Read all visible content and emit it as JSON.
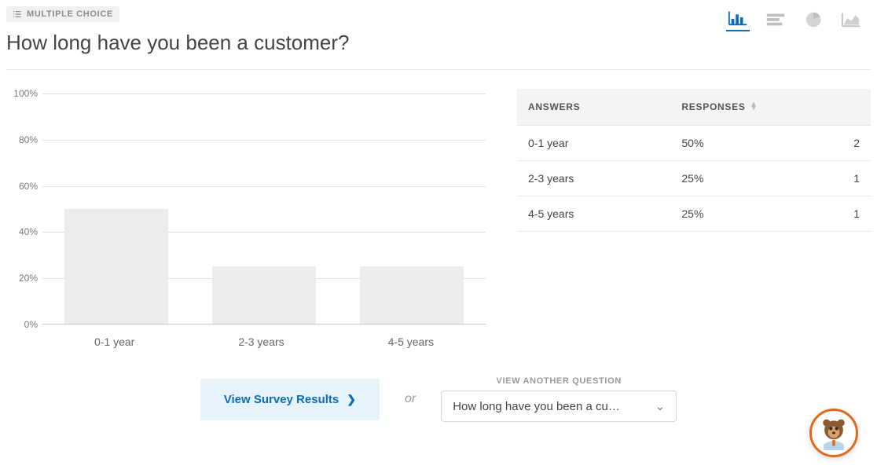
{
  "question": {
    "type_label": "MULTIPLE CHOICE",
    "title": "How long have you been a customer?"
  },
  "chart_switcher": {
    "active_color": "#0b6db7",
    "inactive_color": "#bfbfbf",
    "options": [
      "bar",
      "hbar",
      "pie",
      "area"
    ],
    "active": "bar"
  },
  "chart": {
    "type": "bar",
    "categories": [
      "0-1 year",
      "2-3 years",
      "4-5 years"
    ],
    "values_pct": [
      50,
      25,
      25
    ],
    "bar_color": "#ececec",
    "grid_color": "#e0e0e0",
    "axis_color": "#c9c9c9",
    "label_color": "#7a7a7a",
    "background_color": "#ffffff",
    "ylim": [
      0,
      100
    ],
    "ytick_step": 20,
    "yticks": [
      "0%",
      "20%",
      "40%",
      "60%",
      "80%",
      "100%"
    ],
    "bar_width_pct": 70,
    "label_fontsize": 14,
    "tick_fontsize": 12
  },
  "table": {
    "col_answers": "ANSWERS",
    "col_responses": "RESPONSES",
    "rows": [
      {
        "answer": "0-1 year",
        "pct": "50%",
        "count": "2"
      },
      {
        "answer": "2-3 years",
        "pct": "25%",
        "count": "1"
      },
      {
        "answer": "4-5 years",
        "pct": "25%",
        "count": "1"
      }
    ],
    "header_bg": "#f4f4f4",
    "border_color": "#ececec"
  },
  "footer": {
    "view_results_label": "View Survey Results",
    "or_label": "or",
    "another_label": "VIEW ANOTHER QUESTION",
    "dropdown_value": "How long have you been a cu…",
    "button_bg": "#e7f3fb",
    "button_fg": "#0b6db7"
  },
  "help_bubble": {
    "border_color": "#e06a1b"
  }
}
